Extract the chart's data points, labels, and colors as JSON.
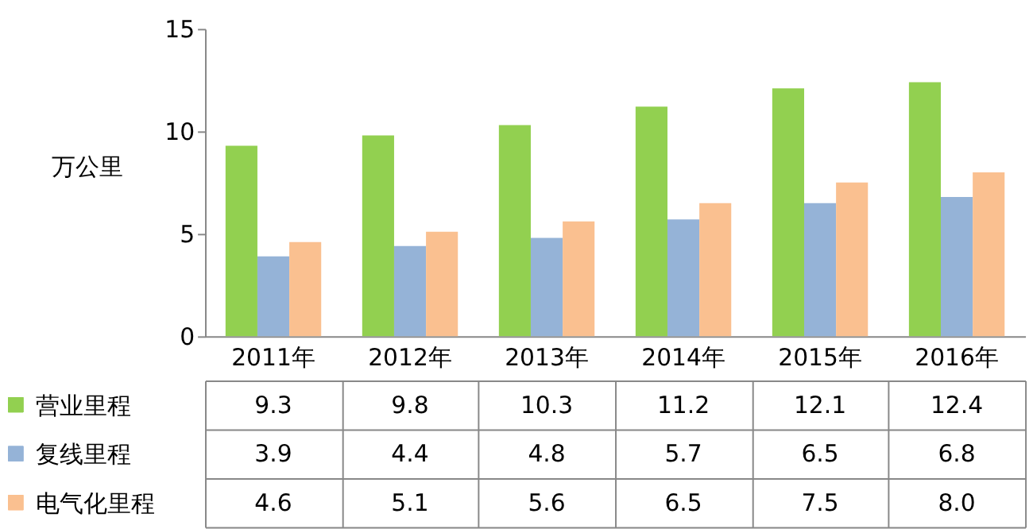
{
  "chart_data": {
    "type": "bar",
    "ylabel": "万公里",
    "categories": [
      "2011年",
      "2012年",
      "2013年",
      "2014年",
      "2015年",
      "2016年"
    ],
    "series": [
      {
        "name": "营业里程",
        "color": "#92d050",
        "values": [
          9.3,
          9.8,
          10.3,
          11.2,
          12.1,
          12.4
        ],
        "value_labels": [
          "9.3",
          "9.8",
          "10.3",
          "11.2",
          "12.1",
          "12.4"
        ]
      },
      {
        "name": "复线里程",
        "color": "#95b3d7",
        "values": [
          3.9,
          4.4,
          4.8,
          5.7,
          6.5,
          6.8
        ],
        "value_labels": [
          "3.9",
          "4.4",
          "4.8",
          "5.7",
          "6.5",
          "6.8"
        ]
      },
      {
        "name": "电气化里程",
        "color": "#fac090",
        "values": [
          4.6,
          5.1,
          5.6,
          6.5,
          7.5,
          8.0
        ],
        "value_labels": [
          "4.6",
          "5.1",
          "5.6",
          "6.5",
          "7.5",
          "8.0"
        ]
      }
    ],
    "ylim": [
      0,
      15
    ],
    "yticks": [
      0,
      5,
      10,
      15
    ],
    "grid": false,
    "legend": "bottom left"
  }
}
